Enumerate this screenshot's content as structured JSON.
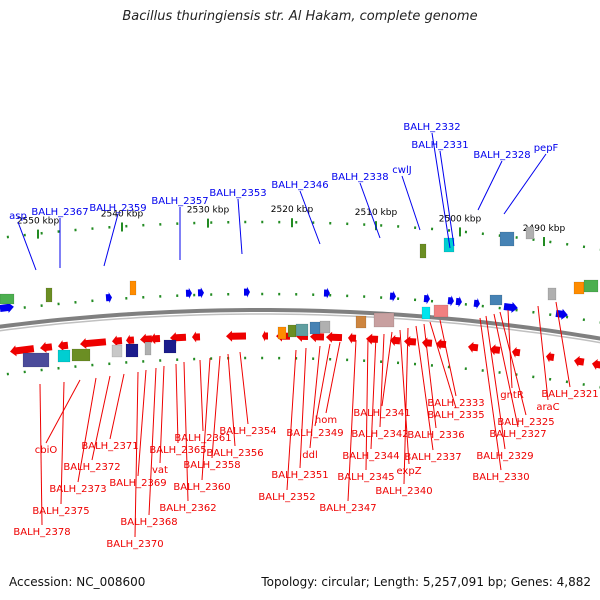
{
  "title": "Bacillus thuringiensis str. Al Hakam, complete genome",
  "footer": {
    "accession": "Accession: NC_008600",
    "summary": "Topology: circular; Length: 5,257,091 bp; Genes: 4,882"
  },
  "colors": {
    "forward_strand": "#0000ee",
    "reverse_strand": "#ee0000",
    "backbone": "#808080",
    "tick": "#228b22"
  },
  "scale_ticks": [
    "2550 kbp",
    "2540 kbp",
    "2530 kbp",
    "2520 kbp",
    "2510 kbp",
    "2500 kbp",
    "2490 kbp"
  ],
  "forward_labels": [
    "asp",
    "BALH_2367",
    "BALH_2359",
    "BALH_2357",
    "BALH_2353",
    "BALH_2346",
    "BALH_2338",
    "cwlJ",
    "BALH_2332",
    "BALH_2331",
    "BALH_2328",
    "pepF"
  ],
  "reverse_labels": [
    "BALH_2321",
    "araC",
    "gntR",
    "BALH_2325",
    "BALH_2327",
    "BALH_2329",
    "BALH_2330",
    "BALH_2333",
    "BALH_2335",
    "BALH_2336",
    "BALH_2337",
    "BALH_2340",
    "expZ",
    "BALH_2341",
    "BALH_2342",
    "BALH_2344",
    "BALH_2345",
    "BALH_2347",
    "hom",
    "BALH_2349",
    "ddl",
    "BALH_2351",
    "BALH_2352",
    "BALH_2354",
    "BALH_2356",
    "BALH_2358",
    "BALH_2360",
    "BALH_2361",
    "BALH_2362",
    "BALH_2365",
    "vat",
    "BALH_2368",
    "BALH_2369",
    "BALH_2370",
    "BALH_2371",
    "BALH_2372",
    "BALH_2373",
    "cbiO",
    "BALH_2375",
    "BALH_2378"
  ]
}
